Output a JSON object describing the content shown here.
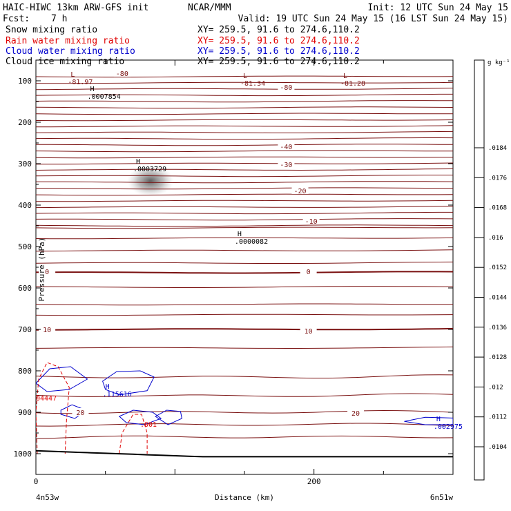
{
  "header": {
    "title": "HAIC-HIWC 13km ARW-GFS init",
    "center": "NCAR/MMM",
    "init": "Init: 12 UTC Sun 24 May 15",
    "fcst_label": "Fcst:",
    "fcst_value": "7 h",
    "valid": "Valid: 19 UTC Sun 24 May 15 (16 LST Sun 24 May 15)"
  },
  "fields": [
    {
      "name": "Snow mixing ratio",
      "xy": "XY= 259.5, 91.6 to 274.6,110.2",
      "color": "#000000"
    },
    {
      "name": "Rain water mixing ratio",
      "xy": "XY= 259.5, 91.6 to 274.6,110.2",
      "color": "#e00000"
    },
    {
      "name": "Cloud water mixing ratio",
      "xy": "XY= 259.5, 91.6 to 274.6,110.2",
      "color": "#0000cc"
    },
    {
      "name": "Cloud ice mixing ratio",
      "xy": "XY= 259.5, 91.6 to 274.6,110.2",
      "color": "#000000"
    }
  ],
  "chart_data": {
    "type": "cross-section",
    "xlabel": "Distance (km)",
    "ylabel": "Pressure (hPa)",
    "x_ticks": [
      0,
      200
    ],
    "y_ticks": [
      100,
      200,
      300,
      400,
      500,
      600,
      700,
      800,
      900,
      1000
    ],
    "xlim": [
      0,
      300
    ],
    "ylim": [
      1050,
      50
    ],
    "endpoints": {
      "left": "4n53w",
      "right": "6n51w"
    },
    "temperature_labels": [
      {
        "text": "-80",
        "x": 62,
        "p": 82
      },
      {
        "text": "-80",
        "x": 180,
        "p": 115
      },
      {
        "text": "-40",
        "x": 180,
        "p": 258
      },
      {
        "text": "-30",
        "x": 180,
        "p": 302
      },
      {
        "text": "-20",
        "x": 190,
        "p": 365
      },
      {
        "text": "-10",
        "x": 198,
        "p": 438
      },
      {
        "text": "0",
        "x": 8,
        "p": 560
      },
      {
        "text": "0",
        "x": 196,
        "p": 560
      },
      {
        "text": "10",
        "x": 8,
        "p": 700
      },
      {
        "text": "10",
        "x": 196,
        "p": 703
      },
      {
        "text": "20",
        "x": 32,
        "p": 900
      },
      {
        "text": "20",
        "x": 230,
        "p": 902
      }
    ],
    "extrema": [
      {
        "kind": "L",
        "value": "-81.97",
        "x": 25,
        "p": 90,
        "color": "#7a1010"
      },
      {
        "kind": "L",
        "value": "-81.34",
        "x": 149,
        "p": 93,
        "color": "#7a1010"
      },
      {
        "kind": "L",
        "value": "-81.28",
        "x": 221,
        "p": 93,
        "color": "#7a1010"
      },
      {
        "kind": "H",
        "value": ".0007854",
        "x": 39,
        "p": 125,
        "color": "#000000"
      },
      {
        "kind": "H",
        "value": ".0003729",
        "x": 72,
        "p": 300,
        "color": "#000000"
      },
      {
        "kind": "H",
        "value": ".0000082",
        "x": 145,
        "p": 475,
        "color": "#000000"
      },
      {
        "kind": "H",
        "value": ".115616",
        "x": 50,
        "p": 843,
        "color": "#0000cc"
      },
      {
        "kind": "H",
        "value": ".002975",
        "x": 288,
        "p": 922,
        "color": "#0000cc"
      }
    ],
    "rain_labels": [
      {
        "text": "04447",
        "x": 0,
        "p": 872
      },
      {
        "text": ".001",
        "x": 75,
        "p": 935
      }
    ],
    "colorbar": {
      "unit": "g kg⁻¹",
      "ticks": [
        ".0104",
        ".0112",
        ".012",
        ".0128",
        ".0136",
        ".0144",
        ".0152",
        ".016",
        ".0168",
        ".0176",
        ".0184"
      ]
    }
  }
}
